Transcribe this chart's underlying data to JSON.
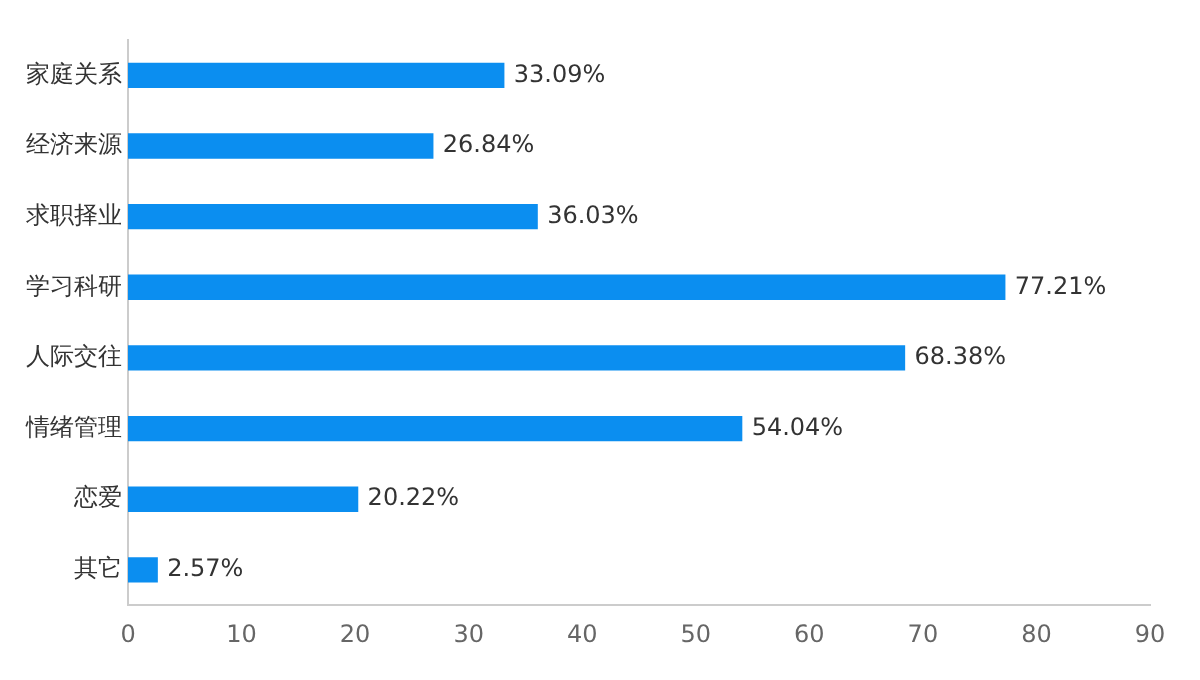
{
  "chart_data": {
    "type": "bar",
    "orientation": "horizontal",
    "categories": [
      "家庭关系",
      "经济来源",
      "求职择业",
      "学习科研",
      "人际交往",
      "情绪管理",
      "恋爱",
      "其它"
    ],
    "values": [
      33.09,
      26.84,
      36.03,
      77.21,
      68.38,
      54.04,
      20.22,
      2.57
    ],
    "value_labels": [
      "33.09%",
      "26.84%",
      "36.03%",
      "77.21%",
      "68.38%",
      "54.04%",
      "20.22%",
      "2.57%"
    ],
    "color": "#0b8ef0",
    "xlim": [
      0,
      90
    ],
    "xticks": [
      0,
      10,
      20,
      30,
      40,
      50,
      60,
      70,
      80,
      90
    ],
    "grid": false,
    "legend": false
  }
}
